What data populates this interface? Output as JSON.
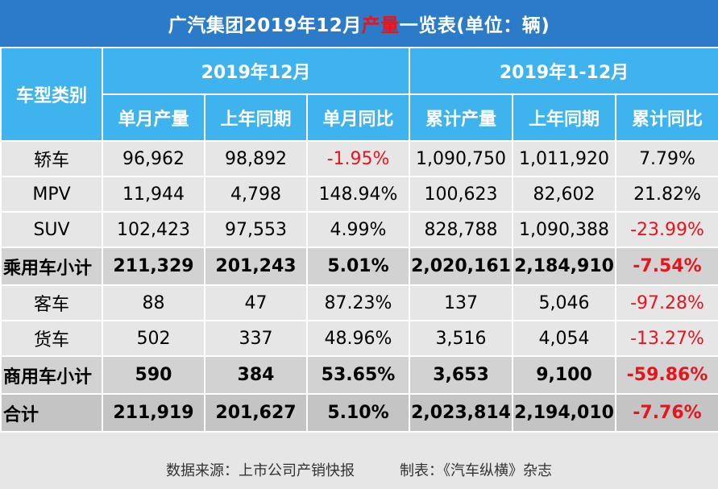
{
  "title": {
    "prefix": "广汽集团2019年12月",
    "highlight": "产量",
    "suffix": "一览表(单位：辆)"
  },
  "header": {
    "category": "车型类别",
    "group_month": "2019年12月",
    "group_ytd": "2019年1-12月",
    "columns": [
      "单月产量",
      "上年同期",
      "单月同比",
      "累计产量",
      "上年同期",
      "累计同比"
    ]
  },
  "rows": [
    {
      "cat": "轿车",
      "v": [
        "96,962",
        "98,892",
        "-1.95%",
        "1,090,750",
        "1,011,920",
        "7.79%"
      ]
    },
    {
      "cat": "MPV",
      "v": [
        "11,944",
        "4,798",
        "148.94%",
        "100,623",
        "82,602",
        "21.82%"
      ]
    },
    {
      "cat": "SUV",
      "v": [
        "102,423",
        "97,553",
        "4.99%",
        "828,788",
        "1,090,388",
        "-23.99%"
      ]
    },
    {
      "cat": "乘用车小计",
      "v": [
        "211,329",
        "201,243",
        "5.01%",
        "2,020,161",
        "2,184,910",
        "-7.54%"
      ]
    },
    {
      "cat": "客车",
      "v": [
        "88",
        "47",
        "87.23%",
        "137",
        "5,046",
        "-97.28%"
      ]
    },
    {
      "cat": "货车",
      "v": [
        "502",
        "337",
        "48.96%",
        "3,516",
        "4,054",
        "-13.27%"
      ]
    },
    {
      "cat": "商用车小计",
      "v": [
        "590",
        "384",
        "53.65%",
        "3,653",
        "9,100",
        "-59.86%"
      ]
    },
    {
      "cat": "合计",
      "v": [
        "211,919",
        "201,627",
        "5.10%",
        "2,023,814",
        "2,194,010",
        "-7.76%"
      ]
    }
  ],
  "footer": {
    "source": "数据来源：上市公司产销快报",
    "maker": "制表：《汽车纵横》杂志"
  },
  "colors": {
    "title_bg": "#2b7bc9",
    "header_bg": "#3fb3ee",
    "negative": "#e8141b"
  }
}
